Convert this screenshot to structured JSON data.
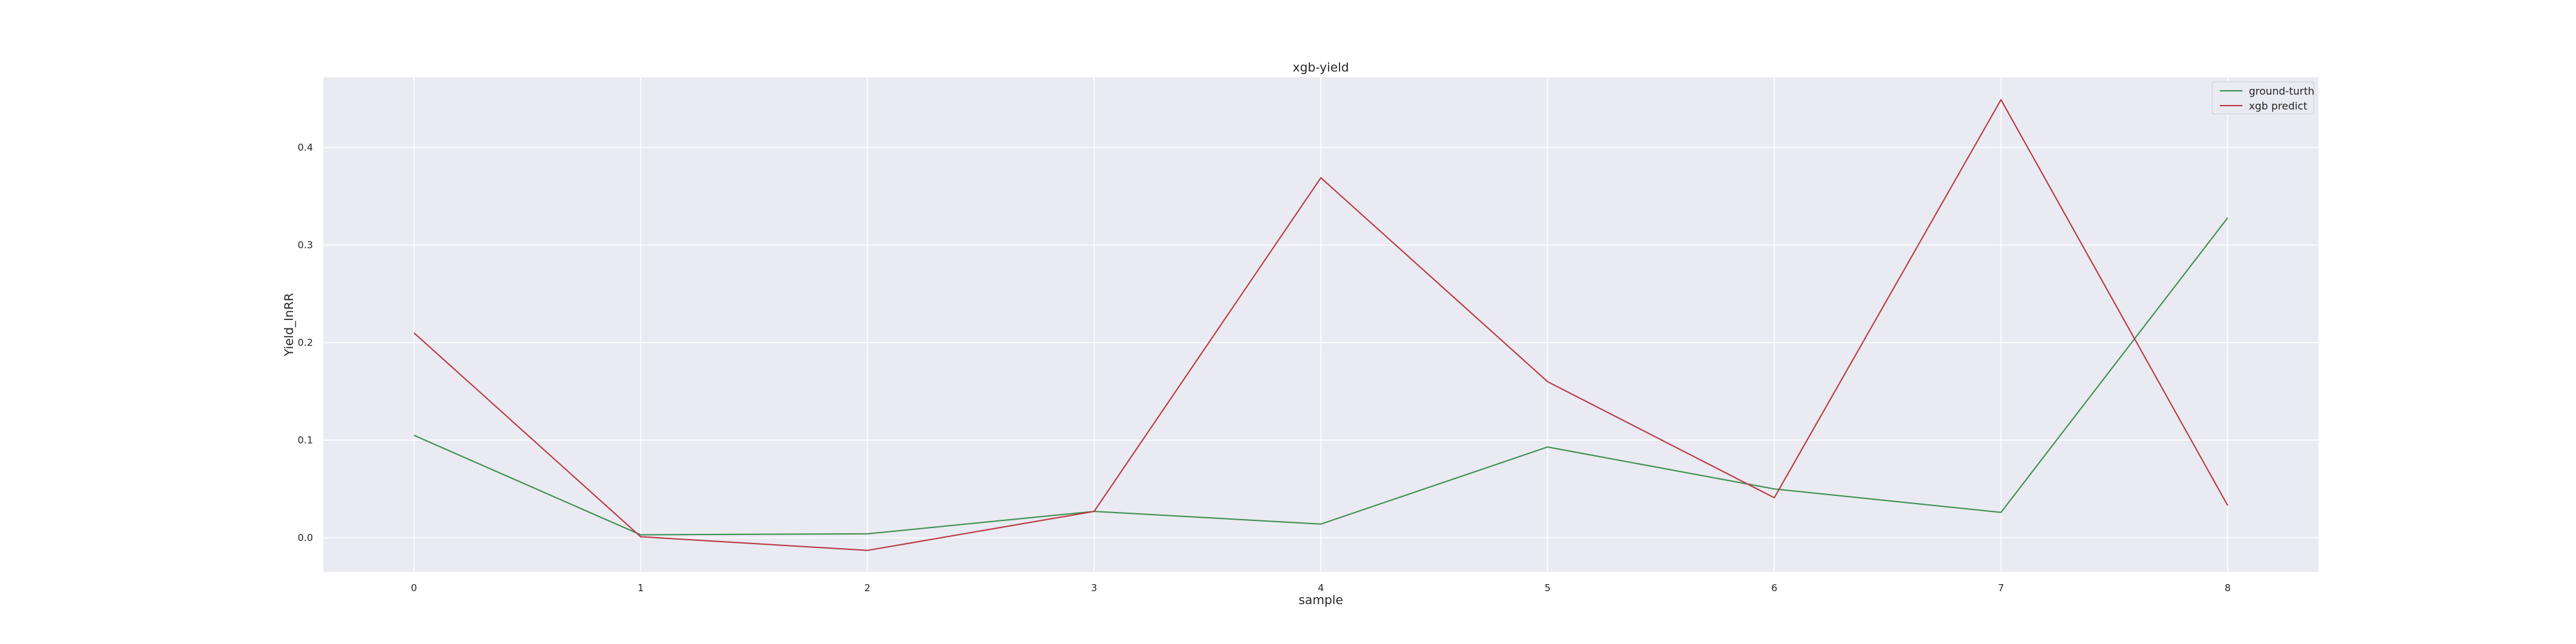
{
  "chart_data": {
    "type": "line",
    "title": "xgb-yield",
    "xlabel": "sample",
    "ylabel": "Yield_lnRR",
    "x": [
      0,
      1,
      2,
      3,
      4,
      5,
      6,
      7,
      8
    ],
    "xticks": [
      0,
      1,
      2,
      3,
      4,
      5,
      6,
      7,
      8
    ],
    "yticks": [
      0.0,
      0.1,
      0.2,
      0.3,
      0.4
    ],
    "xlim": [
      -0.4,
      8.4
    ],
    "ylim": [
      -0.035,
      0.472
    ],
    "grid": true,
    "legend_position": "top-right",
    "series": [
      {
        "name": "ground-turth",
        "color": "#3f8f4f",
        "values": [
          0.105,
          0.003,
          0.004,
          0.027,
          0.014,
          0.093,
          0.05,
          0.026,
          0.328
        ]
      },
      {
        "name": "xgb predict",
        "color": "#b83a45",
        "values": [
          0.21,
          0.001,
          -0.013,
          0.027,
          0.369,
          0.16,
          0.041,
          0.449,
          0.033
        ]
      }
    ]
  }
}
